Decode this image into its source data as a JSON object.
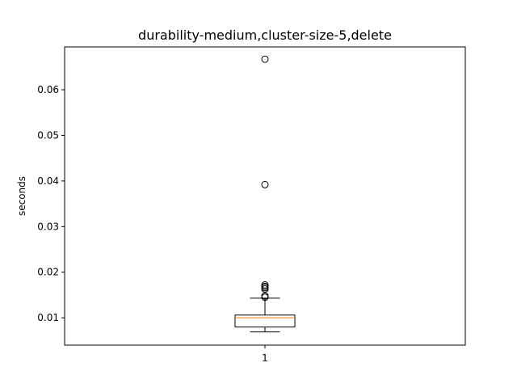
{
  "chart_data": {
    "type": "box",
    "title": "durability-medium,cluster-size-5,delete",
    "xlabel": "",
    "ylabel": "seconds",
    "ylim": [
      0.004,
      0.0694
    ],
    "yticks": [
      0.01,
      0.02,
      0.03,
      0.04,
      0.05,
      0.06
    ],
    "ytick_labels": [
      "0.01",
      "0.02",
      "0.03",
      "0.04",
      "0.05",
      "0.06"
    ],
    "categories": [
      "1"
    ],
    "boxes": [
      {
        "category": "1",
        "whisker_low": 0.0069,
        "q1": 0.008,
        "median": 0.01,
        "q3": 0.0106,
        "whisker_high": 0.0143,
        "outliers": [
          0.0145,
          0.0148,
          0.0163,
          0.0166,
          0.0169,
          0.0172,
          0.0392,
          0.0667
        ]
      }
    ],
    "colors": {
      "box": "#000000",
      "median": "#ff7f0e",
      "outlier_edge": "#000000"
    },
    "grid": false
  }
}
